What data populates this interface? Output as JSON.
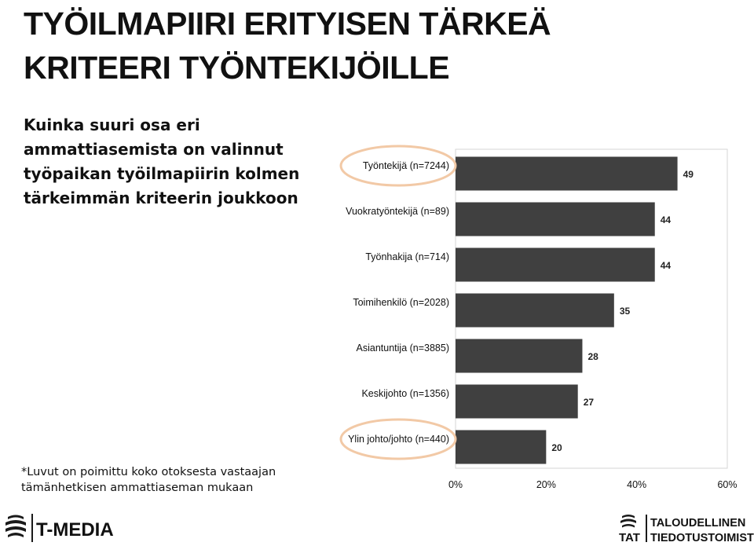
{
  "slide": {
    "title_line1": "TYÖILMAPIIRI ERITYISEN TÄRKEÄ",
    "title_line2": "KRITEERI TYÖNTEKIJÖILLE",
    "subtitle": "Kuinka suuri osa eri ammattiasemista on valinnut työpaikan työilmapiirin kolmen tärkeimmän kriteerin joukkoon",
    "footnote": "*Luvut on poimittu koko otoksesta vastaajan tämänhetkisen ammattiaseman mukaan"
  },
  "logos": {
    "left": "T-MEDIA",
    "right_abbr": "TAT",
    "right_line1": "TALOUDELLINEN",
    "right_line2": "TIEDOTUSTOIMISTO"
  },
  "chart_data": {
    "type": "bar",
    "orientation": "horizontal",
    "categories": [
      "Työntekijä (n=7244)",
      "Vuokratyöntekijä (n=89)",
      "Työnhakija (n=714)",
      "Toimihenkilö (n=2028)",
      "Asiantuntija (n=3885)",
      "Keskijohto (n=1356)",
      "Ylin johto/johto (n=440)"
    ],
    "values": [
      49,
      44,
      44,
      35,
      28,
      27,
      20
    ],
    "data_labels": [
      "49",
      "44",
      "44",
      "35",
      "28",
      "27",
      "20"
    ],
    "xlim": [
      0,
      60
    ],
    "x_ticks": [
      "0%",
      "20%",
      "40%",
      "60%"
    ],
    "x_tick_values": [
      0,
      20,
      40,
      60
    ],
    "highlighted_categories": [
      "Työntekijä (n=7244)",
      "Ylin johto/johto (n=440)"
    ],
    "bar_color": "#404040",
    "highlight_color": "#f2c9a6",
    "grid": false
  }
}
